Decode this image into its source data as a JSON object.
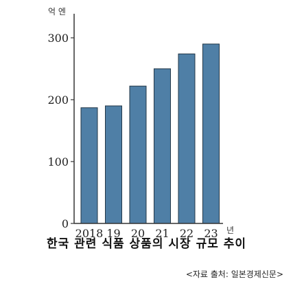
{
  "chart_data": {
    "type": "bar",
    "title": "한국 관련 식품 상품의 시장 규모 추이",
    "source": "<자료 출처: 일본경제신문>",
    "y_unit": "억 엔",
    "x_unit": "년",
    "categories": [
      "2018",
      "19",
      "20",
      "21",
      "22",
      "23"
    ],
    "values": [
      187,
      190,
      222,
      250,
      274,
      290
    ],
    "yticks": [
      0,
      100,
      200,
      300
    ],
    "ylim": [
      0,
      300
    ],
    "grid": false,
    "colors": {
      "bar": "#4f7fa6",
      "bar_edge": "#233747",
      "axis": "#333333"
    }
  }
}
